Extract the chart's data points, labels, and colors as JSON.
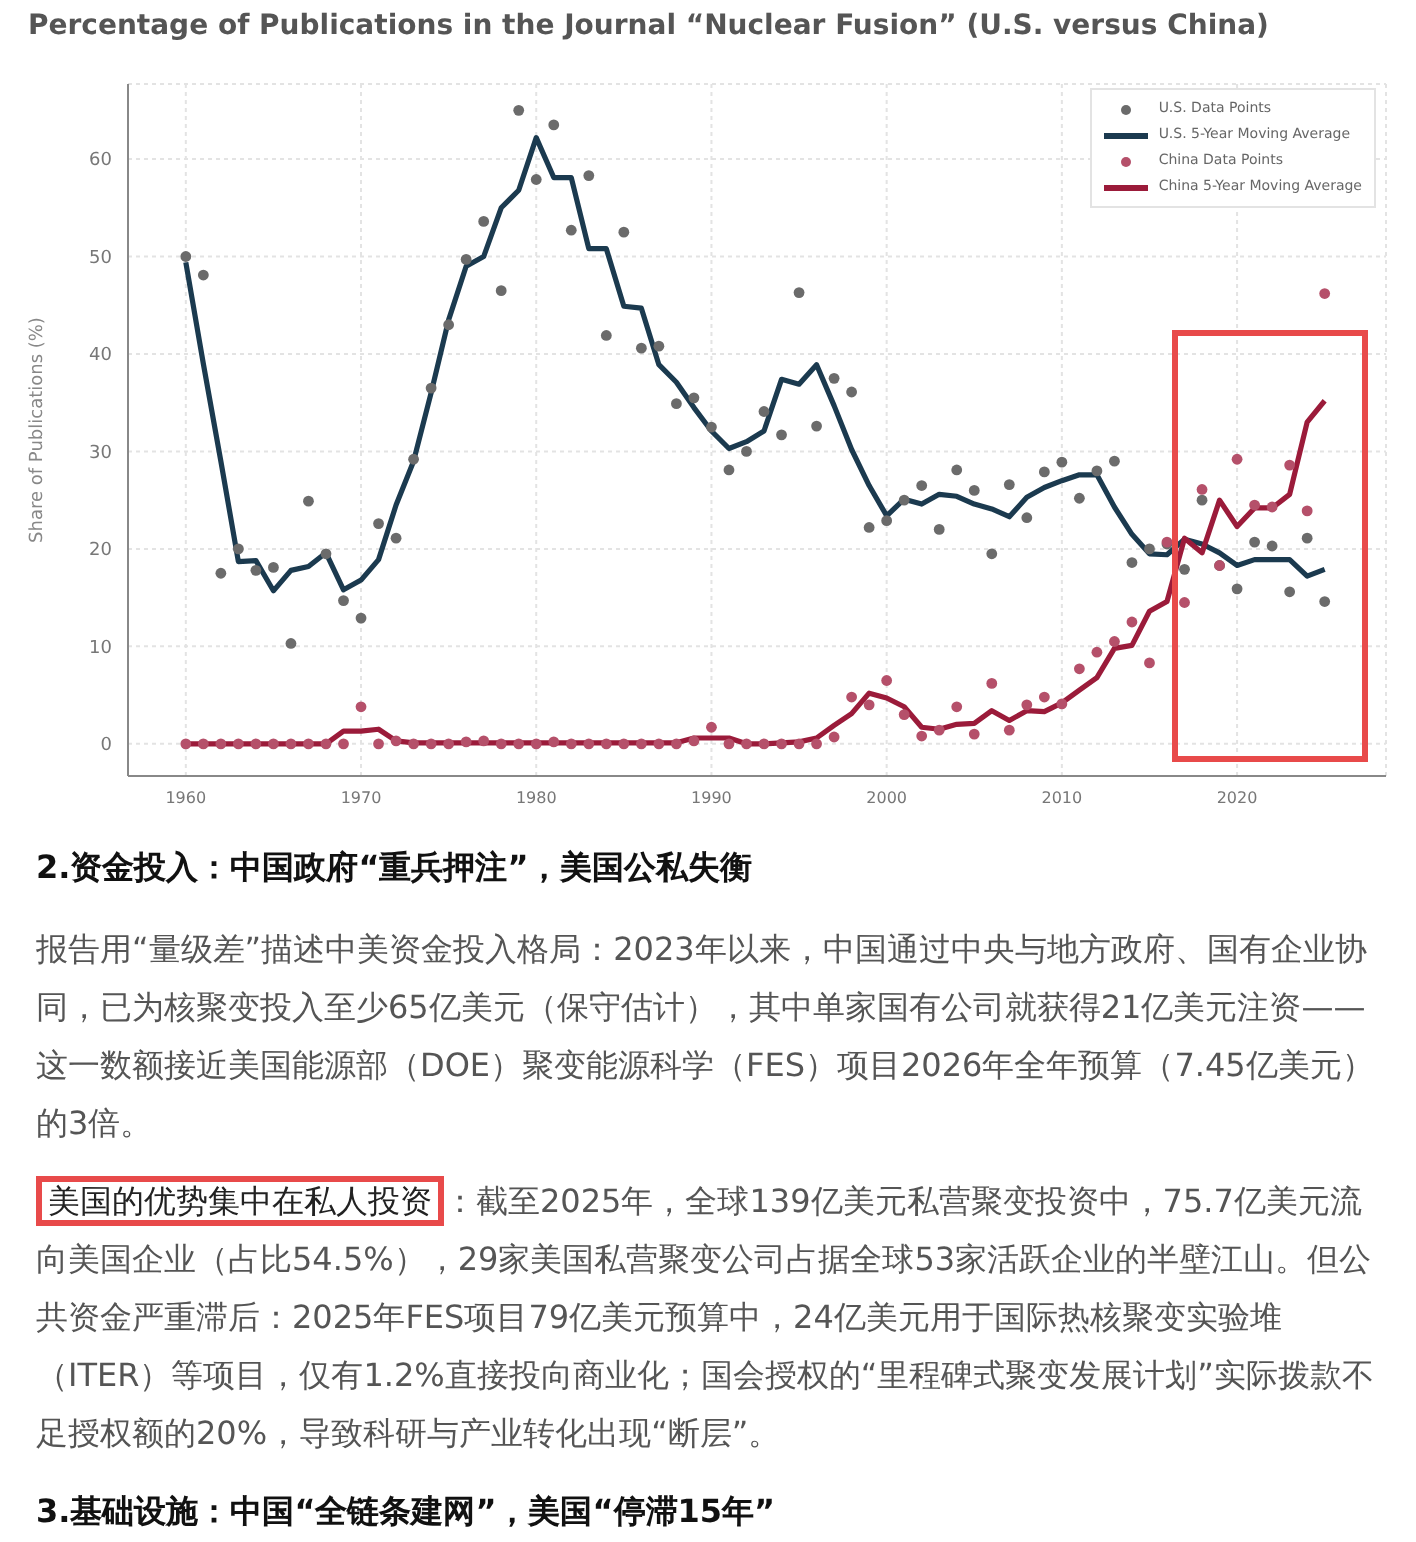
{
  "chart_data": {
    "type": "line",
    "title": "Percentage of Publications in the Journal “Nuclear Fusion” (U.S. versus China)",
    "ylabel": "Share of Publications (%)",
    "x": [
      1960,
      1961,
      1962,
      1963,
      1964,
      1965,
      1966,
      1967,
      1968,
      1969,
      1970,
      1971,
      1972,
      1973,
      1974,
      1975,
      1976,
      1977,
      1978,
      1979,
      1980,
      1981,
      1982,
      1983,
      1984,
      1985,
      1986,
      1987,
      1988,
      1989,
      1990,
      1991,
      1992,
      1993,
      1994,
      1995,
      1996,
      1997,
      1998,
      1999,
      2000,
      2001,
      2002,
      2003,
      2004,
      2005,
      2006,
      2007,
      2008,
      2009,
      2010,
      2011,
      2012,
      2013,
      2014,
      2015,
      2016,
      2017,
      2018,
      2019,
      2020,
      2021,
      2022,
      2023,
      2024,
      2025
    ],
    "series": [
      {
        "name": "U.S. Data Points",
        "type": "scatter",
        "marker": "circle",
        "color": "#6b6b6b",
        "values": [
          50,
          48.1,
          17.5,
          20,
          17.8,
          18.1,
          10.3,
          24.9,
          19.5,
          14.7,
          12.9,
          22.6,
          21.1,
          29.2,
          36.5,
          43,
          49.7,
          53.6,
          46.5,
          65,
          57.9,
          63.5,
          52.7,
          58.3,
          41.9,
          52.5,
          40.6,
          40.8,
          34.9,
          35.5,
          32.5,
          28.1,
          30,
          34.1,
          31.7,
          46.3,
          32.6,
          37.5,
          36.1,
          22.2,
          22.9,
          25,
          26.5,
          22,
          28.1,
          26,
          19.5,
          26.6,
          23.2,
          27.9,
          28.9,
          25.2,
          28,
          29,
          18.6,
          20,
          20.5,
          17.9,
          25,
          18.3,
          15.9,
          20.7,
          20.3,
          15.6,
          21.1,
          14.6
        ]
      },
      {
        "name": "U.S. 5-Year Moving Average",
        "marker": "none",
        "color": "#1b3a4f",
        "values": [
          49.4,
          39,
          29,
          18.7,
          18.8,
          15.7,
          17.8,
          18.2,
          19.6,
          15.8,
          16.8,
          18.9,
          24.5,
          29,
          36,
          43.5,
          49,
          50,
          55,
          56.8,
          62.2,
          58.1,
          58.1,
          50.8,
          50.8,
          44.9,
          44.7,
          38.9,
          37.1,
          34.5,
          32.1,
          30.3,
          31,
          32.1,
          37.4,
          36.9,
          38.9,
          34.7,
          30.2,
          26.5,
          23.4,
          25.1,
          24.6,
          25.6,
          25.4,
          24.6,
          24.1,
          23.3,
          25.3,
          26.3,
          27,
          27.6,
          27.6,
          24.3,
          21.5,
          19.5,
          19.4,
          21,
          20.5,
          19.6,
          18.3,
          18.9,
          18.9,
          18.9,
          17.2,
          17.9
        ]
      },
      {
        "name": "China Data Points",
        "type": "scatter",
        "marker": "circle",
        "color": "#b5506a",
        "values": [
          0,
          0,
          0,
          0,
          0,
          0,
          0,
          0,
          0,
          0,
          3.8,
          0,
          0.3,
          0,
          0,
          0,
          0.2,
          0.3,
          0,
          0,
          0,
          0.2,
          0,
          0,
          0,
          0,
          0,
          0,
          0,
          0.3,
          1.7,
          0,
          0,
          0,
          0,
          0,
          0,
          0.7,
          4.8,
          4,
          6.5,
          3,
          0.8,
          1.4,
          3.8,
          1,
          6.2,
          1.4,
          4,
          4.8,
          4.1,
          7.7,
          9.4,
          10.5,
          12.5,
          8.3,
          20.7,
          14.5,
          26.1,
          18.3,
          29.2,
          24.5,
          24.3,
          28.6,
          23.9,
          46.2
        ]
      },
      {
        "name": "China 5-Year Moving Average",
        "marker": "none",
        "color": "#9b1b3a",
        "values": [
          0,
          0,
          0,
          0,
          0,
          0,
          0,
          0,
          0,
          1.3,
          1.3,
          1.5,
          0.3,
          0.1,
          0.1,
          0.1,
          0.1,
          0.1,
          0.1,
          0.1,
          0.1,
          0.1,
          0.1,
          0.1,
          0.1,
          0.1,
          0.1,
          0.1,
          0.1,
          0.6,
          0.6,
          0.6,
          0,
          0,
          0.1,
          0.2,
          0.6,
          1.9,
          3.1,
          5.2,
          4.7,
          3.8,
          1.7,
          1.5,
          2,
          2.1,
          3.4,
          2.4,
          3.4,
          3.3,
          4.2,
          5.5,
          6.8,
          9.8,
          10.1,
          13.6,
          14.6,
          21.1,
          19.6,
          25,
          22.3,
          24.2,
          24.2,
          25.6,
          33,
          35.2
        ]
      }
    ],
    "xlim": [
      1956.7,
      2028.5
    ],
    "xticks": [
      1960,
      1970,
      1980,
      1990,
      2000,
      2010,
      2020
    ],
    "ylim": [
      -3.3,
      67.7
    ],
    "yticks": [
      0,
      10,
      20,
      30,
      40,
      50,
      60
    ],
    "grid": true,
    "legend": "top right",
    "line_style": "solid",
    "annotations": [
      "2.资金投入：中国政府“重兵押注”，美国公私失衡",
      "报告用“量级差”描述中美资金投入格局：2023年以来，中国通过中央与地方政府、国有企业协同，已为核聚变投入至少65亿美元（保守估计），其中单家国有公司就获得21亿美元注资——这一数额接近美国能源部（DOE）聚变能源科学（FES）项目2026年全年预算（7.45亿美元）的3倍。",
      "美国的优势集中在私人投资",
      "：截至2025年，全球139亿美元私营聚变投资中，75.7亿美元流向美国企业（占比54.5%），29家美国私营聚变公司占据全球53家活跃企业的半壁江山。但公共资金严重滞后：2025年FES项目79亿美元预算中，24亿美元用于国际热核聚变实验堆（ITER）等项目，仅有1.2%直接投向商业化；国会授权的“里程碑式聚变发展计划”实际拨款不足授权额的20%，导致科研与产业转化出现“断层”。",
      "3.基础设施：中国“全链条建网”，美国“停滞15年”"
    ]
  }
}
